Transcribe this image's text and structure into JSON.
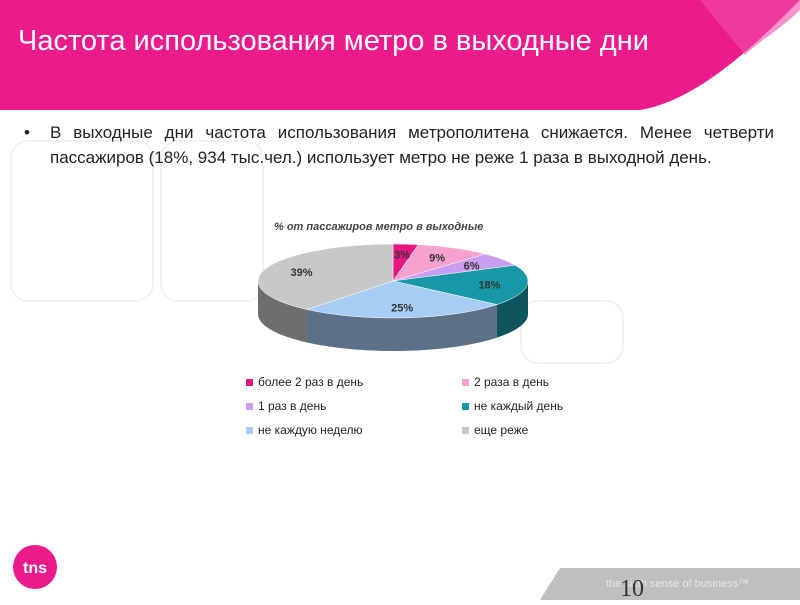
{
  "header": {
    "title": "Частота использования метро в выходные дни",
    "accent_color": "#ec1b8c"
  },
  "bullet": {
    "icon": "bullet-dot",
    "text": "В выходные дни частота использования метрополитена снижается. Менее четверти пассажиров (18%, 934 тыс.чел.) использует метро не реже 1 раза в выходной день."
  },
  "chart_data": {
    "type": "pie",
    "title": "% от пассажиров метро в выходные",
    "legend_position": "bottom",
    "slices": [
      {
        "label": "более 2 раз в день",
        "value": 3,
        "display": "3%",
        "color": "#e8177f"
      },
      {
        "label": "2 раза в день",
        "value": 9,
        "display": "9%",
        "color": "#f7a1cf"
      },
      {
        "label": "1 раз в день",
        "value": 6,
        "display": "6%",
        "color": "#c89ef0"
      },
      {
        "label": "не каждый день",
        "value": 18,
        "display": "18%",
        "color": "#1798a8"
      },
      {
        "label": "не каждую неделю",
        "value": 25,
        "display": "25%",
        "color": "#a8cdf5"
      },
      {
        "label": "еще реже",
        "value": 39,
        "display": "39%",
        "color": "#c8c8c8"
      }
    ]
  },
  "footer": {
    "logo_text": "tns",
    "tagline": "the sixth sense of business™",
    "page_number": "10"
  }
}
